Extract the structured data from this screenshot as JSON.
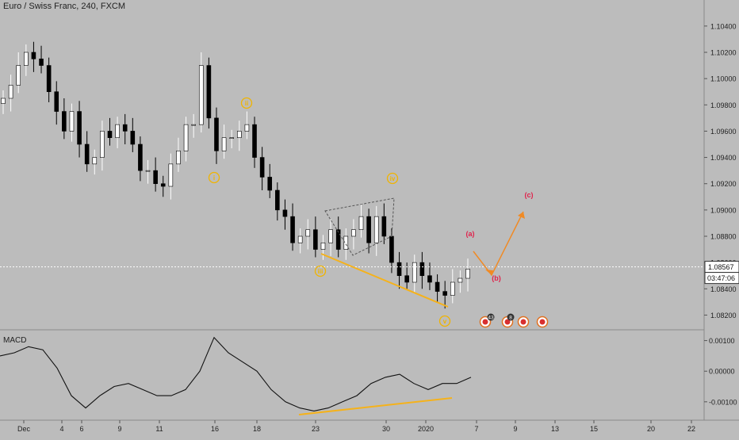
{
  "header": {
    "title": "Euro / Swiss Franc, 240, FXCM"
  },
  "colors": {
    "background": "#bcbcbc",
    "candle_up": "#ffffff",
    "candle_down": "#000000",
    "wave_label": "#f0b400",
    "abc_label": "#e0224b",
    "projection": "#f08a24",
    "divergence": "#f5b21b",
    "macd_line": "#111111"
  },
  "chart_data": [
    {
      "type": "candlestick",
      "title": "Euro / Swiss Franc, 240, FXCM",
      "ylim": [
        1.081,
        1.1055
      ],
      "y_ticks": [
        "1.10400",
        "1.10200",
        "1.10000",
        "1.09800",
        "1.09600",
        "1.09400",
        "1.09200",
        "1.09000",
        "1.08800",
        "1.08600",
        "1.08400",
        "1.08200"
      ],
      "x_ticks": [
        "Dec",
        "4",
        "6",
        "9",
        "11",
        "16",
        "18",
        "23",
        "30",
        "2020",
        "7",
        "9",
        "13",
        "15",
        "20",
        "22"
      ],
      "current_price": "1.08567",
      "countdown": "03:47:06",
      "elliott_waves": [
        "i",
        "ii",
        "iii",
        "iv",
        "v"
      ],
      "abc_waves": [
        "(a)",
        "(b)",
        "(c)"
      ],
      "event_badges": [
        "43",
        "8"
      ],
      "closes": [
        1.0985,
        1.0995,
        1.101,
        1.102,
        1.1015,
        1.101,
        1.099,
        1.0975,
        1.096,
        1.0975,
        1.095,
        1.0935,
        1.094,
        1.096,
        1.0955,
        1.0965,
        1.096,
        1.095,
        1.093,
        1.093,
        1.092,
        1.0918,
        1.0935,
        1.0945,
        1.0965,
        1.0965,
        1.101,
        1.097,
        1.0945,
        1.0955,
        1.0955,
        1.096,
        1.0965,
        1.094,
        1.0925,
        1.0915,
        1.09,
        1.0895,
        1.0875,
        1.088,
        1.0885,
        1.087,
        1.0875,
        1.0885,
        1.087,
        1.088,
        1.0885,
        1.0895,
        1.0875,
        1.0895,
        1.088,
        1.086,
        1.085,
        1.0845,
        1.086,
        1.085,
        1.0845,
        1.0838,
        1.0835,
        1.0845,
        1.0848,
        1.0855
      ]
    },
    {
      "type": "line",
      "title": "MACD",
      "ylim": [
        -0.0016,
        0.0013
      ],
      "y_ticks": [
        "0.00100",
        "0.00000",
        "-0.00100"
      ],
      "values": [
        0.0005,
        0.0006,
        0.0008,
        0.0007,
        0.0001,
        -0.0008,
        -0.0012,
        -0.0008,
        -0.0005,
        -0.0004,
        -0.0006,
        -0.0008,
        -0.0008,
        -0.0006,
        0.0,
        0.0011,
        0.0006,
        0.0003,
        0.0,
        -0.0006,
        -0.001,
        -0.0012,
        -0.0013,
        -0.0012,
        -0.001,
        -0.0008,
        -0.0004,
        -0.0002,
        -0.0001,
        -0.0004,
        -0.0006,
        -0.0004,
        -0.0004,
        -0.0002
      ]
    }
  ]
}
